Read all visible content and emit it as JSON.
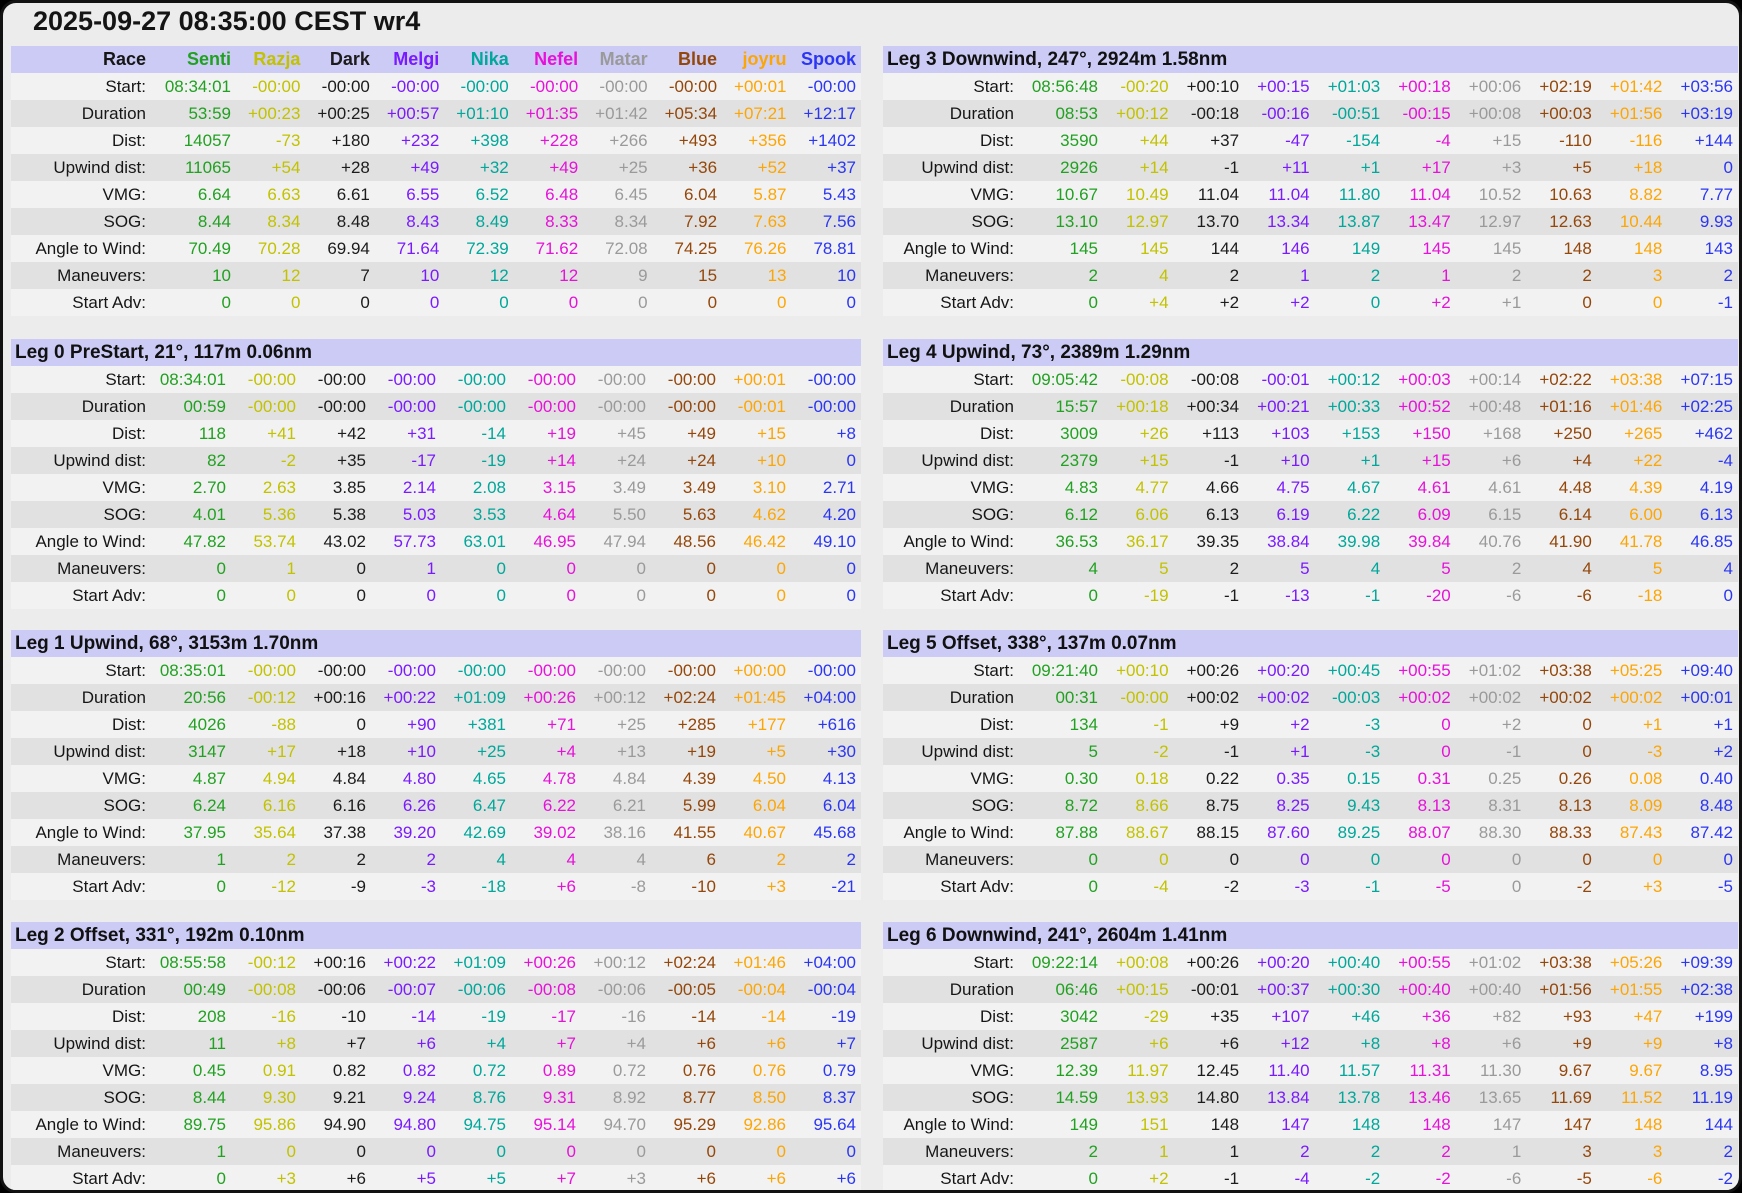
{
  "title": "2025-09-27 08:35:00 CEST wr4",
  "race_header_label": "Race",
  "colors": {
    "header_bg": "#cbcbf6",
    "row_light": "#f2f2f2",
    "row_dark": "#e1e1e1",
    "page_bg": "#ececec",
    "frame_border": "#121212",
    "label_text": "#161616"
  },
  "competitors": [
    {
      "name": "Senti",
      "color": "#21a121"
    },
    {
      "name": "Razja",
      "color": "#c2c200"
    },
    {
      "name": "Dark",
      "color": "#1c1c1c"
    },
    {
      "name": "Melgi",
      "color": "#7a1aff"
    },
    {
      "name": "Nika",
      "color": "#00a79a"
    },
    {
      "name": "Nefel",
      "color": "#e612d9"
    },
    {
      "name": "Matar",
      "color": "#9a9a9a"
    },
    {
      "name": "Blue",
      "color": "#94470a"
    },
    {
      "name": "joyru",
      "color": "#fca606"
    },
    {
      "name": "Spook",
      "color": "#2b36f2"
    }
  ],
  "row_labels": [
    "Start:",
    "Duration",
    "Dist:",
    "Upwind dist:",
    "VMG:",
    "SOG:",
    "Angle to Wind:",
    "Maneuvers:",
    "Start Adv:"
  ],
  "tables": [
    {
      "id": "race",
      "rows": [
        [
          "08:34:01",
          "-00:00",
          "-00:00",
          "-00:00",
          "-00:00",
          "-00:00",
          "-00:00",
          "-00:00",
          "+00:01",
          "-00:00"
        ],
        [
          "53:59",
          "+00:23",
          "+00:25",
          "+00:57",
          "+01:10",
          "+01:35",
          "+01:42",
          "+05:34",
          "+07:21",
          "+12:17"
        ],
        [
          "14057",
          "-73",
          "+180",
          "+232",
          "+398",
          "+228",
          "+266",
          "+493",
          "+356",
          "+1402"
        ],
        [
          "11065",
          "+54",
          "+28",
          "+49",
          "+32",
          "+49",
          "+25",
          "+36",
          "+52",
          "+37"
        ],
        [
          "6.64",
          "6.63",
          "6.61",
          "6.55",
          "6.52",
          "6.48",
          "6.45",
          "6.04",
          "5.87",
          "5.43"
        ],
        [
          "8.44",
          "8.34",
          "8.48",
          "8.43",
          "8.49",
          "8.33",
          "8.34",
          "7.92",
          "7.63",
          "7.56"
        ],
        [
          "70.49",
          "70.28",
          "69.94",
          "71.64",
          "72.39",
          "71.62",
          "72.08",
          "74.25",
          "76.26",
          "78.81"
        ],
        [
          "10",
          "12",
          "7",
          "10",
          "12",
          "12",
          "9",
          "15",
          "13",
          "10"
        ],
        [
          "0",
          "0",
          "0",
          "0",
          "0",
          "0",
          "0",
          "0",
          "0",
          "0"
        ]
      ]
    },
    {
      "id": "leg0",
      "title": "Leg 0 PreStart, 21°, 117m 0.06nm",
      "rows": [
        [
          "08:34:01",
          "-00:00",
          "-00:00",
          "-00:00",
          "-00:00",
          "-00:00",
          "-00:00",
          "-00:00",
          "+00:01",
          "-00:00"
        ],
        [
          "00:59",
          "-00:00",
          "-00:00",
          "-00:00",
          "-00:00",
          "-00:00",
          "-00:00",
          "-00:00",
          "-00:01",
          "-00:00"
        ],
        [
          "118",
          "+41",
          "+42",
          "+31",
          "-14",
          "+19",
          "+45",
          "+49",
          "+15",
          "+8"
        ],
        [
          "82",
          "-2",
          "+35",
          "-17",
          "-19",
          "+14",
          "+24",
          "+24",
          "+10",
          "0"
        ],
        [
          "2.70",
          "2.63",
          "3.85",
          "2.14",
          "2.08",
          "3.15",
          "3.49",
          "3.49",
          "3.10",
          "2.71"
        ],
        [
          "4.01",
          "5.36",
          "5.38",
          "5.03",
          "3.53",
          "4.64",
          "5.50",
          "5.63",
          "4.62",
          "4.20"
        ],
        [
          "47.82",
          "53.74",
          "43.02",
          "57.73",
          "63.01",
          "46.95",
          "47.94",
          "48.56",
          "46.42",
          "49.10"
        ],
        [
          "0",
          "1",
          "0",
          "1",
          "0",
          "0",
          "0",
          "0",
          "0",
          "0"
        ],
        [
          "0",
          "0",
          "0",
          "0",
          "0",
          "0",
          "0",
          "0",
          "0",
          "0"
        ]
      ]
    },
    {
      "id": "leg1",
      "title": "Leg 1 Upwind, 68°, 3153m 1.70nm",
      "rows": [
        [
          "08:35:01",
          "-00:00",
          "-00:00",
          "-00:00",
          "-00:00",
          "-00:00",
          "-00:00",
          "-00:00",
          "+00:00",
          "-00:00"
        ],
        [
          "20:56",
          "-00:12",
          "+00:16",
          "+00:22",
          "+01:09",
          "+00:26",
          "+00:12",
          "+02:24",
          "+01:45",
          "+04:00"
        ],
        [
          "4026",
          "-88",
          "0",
          "+90",
          "+381",
          "+71",
          "+25",
          "+285",
          "+177",
          "+616"
        ],
        [
          "3147",
          "+17",
          "+18",
          "+10",
          "+25",
          "+4",
          "+13",
          "+19",
          "+5",
          "+30"
        ],
        [
          "4.87",
          "4.94",
          "4.84",
          "4.80",
          "4.65",
          "4.78",
          "4.84",
          "4.39",
          "4.50",
          "4.13"
        ],
        [
          "6.24",
          "6.16",
          "6.16",
          "6.26",
          "6.47",
          "6.22",
          "6.21",
          "5.99",
          "6.04",
          "6.04"
        ],
        [
          "37.95",
          "35.64",
          "37.38",
          "39.20",
          "42.69",
          "39.02",
          "38.16",
          "41.55",
          "40.67",
          "45.68"
        ],
        [
          "1",
          "2",
          "2",
          "2",
          "4",
          "4",
          "4",
          "6",
          "2",
          "2"
        ],
        [
          "0",
          "-12",
          "-9",
          "-3",
          "-18",
          "+6",
          "-8",
          "-10",
          "+3",
          "-21"
        ]
      ]
    },
    {
      "id": "leg2",
      "title": "Leg 2 Offset, 331°, 192m 0.10nm",
      "rows": [
        [
          "08:55:58",
          "-00:12",
          "+00:16",
          "+00:22",
          "+01:09",
          "+00:26",
          "+00:12",
          "+02:24",
          "+01:46",
          "+04:00"
        ],
        [
          "00:49",
          "-00:08",
          "-00:06",
          "-00:07",
          "-00:06",
          "-00:08",
          "-00:06",
          "-00:05",
          "-00:04",
          "-00:04"
        ],
        [
          "208",
          "-16",
          "-10",
          "-14",
          "-19",
          "-17",
          "-16",
          "-14",
          "-14",
          "-19"
        ],
        [
          "11",
          "+8",
          "+7",
          "+6",
          "+4",
          "+7",
          "+4",
          "+6",
          "+6",
          "+7"
        ],
        [
          "0.45",
          "0.91",
          "0.82",
          "0.82",
          "0.72",
          "0.89",
          "0.72",
          "0.76",
          "0.76",
          "0.79"
        ],
        [
          "8.44",
          "9.30",
          "9.21",
          "9.24",
          "8.76",
          "9.31",
          "8.92",
          "8.77",
          "8.50",
          "8.37"
        ],
        [
          "89.75",
          "95.86",
          "94.90",
          "94.80",
          "94.75",
          "95.14",
          "94.70",
          "95.29",
          "92.86",
          "95.64"
        ],
        [
          "1",
          "0",
          "0",
          "0",
          "0",
          "0",
          "0",
          "0",
          "0",
          "0"
        ],
        [
          "0",
          "+3",
          "+6",
          "+5",
          "+5",
          "+7",
          "+3",
          "+6",
          "+6",
          "+6"
        ]
      ]
    },
    {
      "id": "leg3",
      "title": "Leg 3 Downwind, 247°, 2924m 1.58nm",
      "rows": [
        [
          "08:56:48",
          "-00:20",
          "+00:10",
          "+00:15",
          "+01:03",
          "+00:18",
          "+00:06",
          "+02:19",
          "+01:42",
          "+03:56"
        ],
        [
          "08:53",
          "+00:12",
          "-00:18",
          "-00:16",
          "-00:51",
          "-00:15",
          "+00:08",
          "+00:03",
          "+01:56",
          "+03:19"
        ],
        [
          "3590",
          "+44",
          "+37",
          "-47",
          "-154",
          "-4",
          "+15",
          "-110",
          "-116",
          "+144"
        ],
        [
          "2926",
          "+14",
          "-1",
          "+11",
          "+1",
          "+17",
          "+3",
          "+5",
          "+18",
          "0"
        ],
        [
          "10.67",
          "10.49",
          "11.04",
          "11.04",
          "11.80",
          "11.04",
          "10.52",
          "10.63",
          "8.82",
          "7.77"
        ],
        [
          "13.10",
          "12.97",
          "13.70",
          "13.34",
          "13.87",
          "13.47",
          "12.97",
          "12.63",
          "10.44",
          "9.93"
        ],
        [
          "145",
          "145",
          "144",
          "146",
          "149",
          "145",
          "145",
          "148",
          "148",
          "143"
        ],
        [
          "2",
          "4",
          "2",
          "1",
          "2",
          "1",
          "2",
          "2",
          "3",
          "2"
        ],
        [
          "0",
          "+4",
          "+2",
          "+2",
          "0",
          "+2",
          "+1",
          "0",
          "0",
          "-1"
        ]
      ]
    },
    {
      "id": "leg4",
      "title": "Leg 4 Upwind, 73°, 2389m 1.29nm",
      "rows": [
        [
          "09:05:42",
          "-00:08",
          "-00:08",
          "-00:01",
          "+00:12",
          "+00:03",
          "+00:14",
          "+02:22",
          "+03:38",
          "+07:15"
        ],
        [
          "15:57",
          "+00:18",
          "+00:34",
          "+00:21",
          "+00:33",
          "+00:52",
          "+00:48",
          "+01:16",
          "+01:46",
          "+02:25"
        ],
        [
          "3009",
          "+26",
          "+113",
          "+103",
          "+153",
          "+150",
          "+168",
          "+250",
          "+265",
          "+462"
        ],
        [
          "2379",
          "+15",
          "-1",
          "+10",
          "+1",
          "+15",
          "+6",
          "+4",
          "+22",
          "-4"
        ],
        [
          "4.83",
          "4.77",
          "4.66",
          "4.75",
          "4.67",
          "4.61",
          "4.61",
          "4.48",
          "4.39",
          "4.19"
        ],
        [
          "6.12",
          "6.06",
          "6.13",
          "6.19",
          "6.22",
          "6.09",
          "6.15",
          "6.14",
          "6.00",
          "6.13"
        ],
        [
          "36.53",
          "36.17",
          "39.35",
          "38.84",
          "39.98",
          "39.84",
          "40.76",
          "41.90",
          "41.78",
          "46.85"
        ],
        [
          "4",
          "5",
          "2",
          "5",
          "4",
          "5",
          "2",
          "4",
          "5",
          "4"
        ],
        [
          "0",
          "-19",
          "-1",
          "-13",
          "-1",
          "-20",
          "-6",
          "-6",
          "-18",
          "0"
        ]
      ]
    },
    {
      "id": "leg5",
      "title": "Leg 5 Offset, 338°, 137m 0.07nm",
      "rows": [
        [
          "09:21:40",
          "+00:10",
          "+00:26",
          "+00:20",
          "+00:45",
          "+00:55",
          "+01:02",
          "+03:38",
          "+05:25",
          "+09:40"
        ],
        [
          "00:31",
          "-00:00",
          "+00:02",
          "+00:02",
          "-00:03",
          "+00:02",
          "+00:02",
          "+00:02",
          "+00:02",
          "+00:01"
        ],
        [
          "134",
          "-1",
          "+9",
          "+2",
          "-3",
          "0",
          "+2",
          "0",
          "+1",
          "+1"
        ],
        [
          "5",
          "-2",
          "-1",
          "+1",
          "-3",
          "0",
          "-1",
          "0",
          "-3",
          "+2"
        ],
        [
          "0.30",
          "0.18",
          "0.22",
          "0.35",
          "0.15",
          "0.31",
          "0.25",
          "0.26",
          "0.08",
          "0.40"
        ],
        [
          "8.72",
          "8.66",
          "8.75",
          "8.25",
          "9.43",
          "8.13",
          "8.31",
          "8.13",
          "8.09",
          "8.48"
        ],
        [
          "87.88",
          "88.67",
          "88.15",
          "87.60",
          "89.25",
          "88.07",
          "88.30",
          "88.33",
          "87.43",
          "87.42"
        ],
        [
          "0",
          "0",
          "0",
          "0",
          "0",
          "0",
          "0",
          "0",
          "0",
          "0"
        ],
        [
          "0",
          "-4",
          "-2",
          "-3",
          "-1",
          "-5",
          "0",
          "-2",
          "+3",
          "-5"
        ]
      ]
    },
    {
      "id": "leg6",
      "title": "Leg 6 Downwind, 241°, 2604m 1.41nm",
      "rows": [
        [
          "09:22:14",
          "+00:08",
          "+00:26",
          "+00:20",
          "+00:40",
          "+00:55",
          "+01:02",
          "+03:38",
          "+05:26",
          "+09:39"
        ],
        [
          "06:46",
          "+00:15",
          "-00:01",
          "+00:37",
          "+00:30",
          "+00:40",
          "+00:40",
          "+01:56",
          "+01:55",
          "+02:38"
        ],
        [
          "3042",
          "-29",
          "+35",
          "+107",
          "+46",
          "+36",
          "+82",
          "+93",
          "+47",
          "+199"
        ],
        [
          "2587",
          "+6",
          "+6",
          "+12",
          "+8",
          "+8",
          "+6",
          "+9",
          "+9",
          "+8"
        ],
        [
          "12.39",
          "11.97",
          "12.45",
          "11.40",
          "11.57",
          "11.31",
          "11.30",
          "9.67",
          "9.67",
          "8.95"
        ],
        [
          "14.59",
          "13.93",
          "14.80",
          "13.84",
          "13.78",
          "13.46",
          "13.65",
          "11.69",
          "11.52",
          "11.19"
        ],
        [
          "149",
          "151",
          "148",
          "147",
          "148",
          "148",
          "147",
          "147",
          "148",
          "144"
        ],
        [
          "2",
          "1",
          "1",
          "2",
          "2",
          "2",
          "1",
          "3",
          "3",
          "2"
        ],
        [
          "0",
          "+2",
          "-1",
          "-4",
          "-2",
          "-2",
          "-6",
          "-5",
          "-6",
          "-2"
        ]
      ]
    }
  ]
}
